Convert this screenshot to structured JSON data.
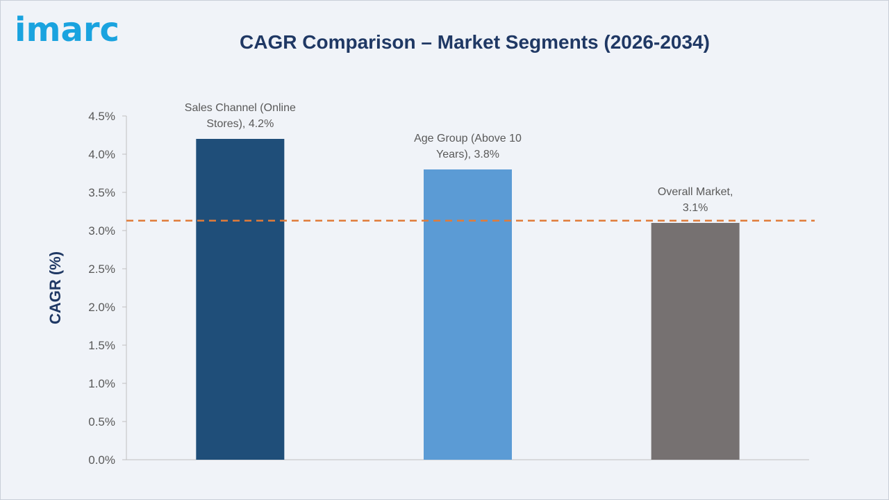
{
  "brand": {
    "logo_text": "imarc"
  },
  "chart_data": {
    "type": "bar",
    "title": "CAGR Comparison – Market Segments (2026-2034)",
    "xlabel": "",
    "ylabel": "CAGR (%)",
    "ylim": [
      0,
      4.5
    ],
    "ytick_step": 0.5,
    "yticks": [
      "0.0%",
      "0.5%",
      "1.0%",
      "1.5%",
      "2.0%",
      "2.5%",
      "3.0%",
      "3.5%",
      "4.0%",
      "4.5%"
    ],
    "categories": [
      "Sales Channel (Online Stores)",
      "Age Group (Above 10 Years)",
      "Overall Market"
    ],
    "values": [
      4.2,
      3.8,
      3.1
    ],
    "data_labels": [
      [
        "Sales Channel (Online",
        "Stores), 4.2%"
      ],
      [
        "Age Group (Above 10",
        "Years), 3.8%"
      ],
      [
        "Overall Market,",
        "3.1%"
      ]
    ],
    "colors": [
      "#1f4e79",
      "#5b9bd5",
      "#767171"
    ],
    "reference_line": {
      "value": 3.13,
      "color": "#e07b39",
      "style": "dashed"
    },
    "grid": false,
    "legend": "none"
  }
}
